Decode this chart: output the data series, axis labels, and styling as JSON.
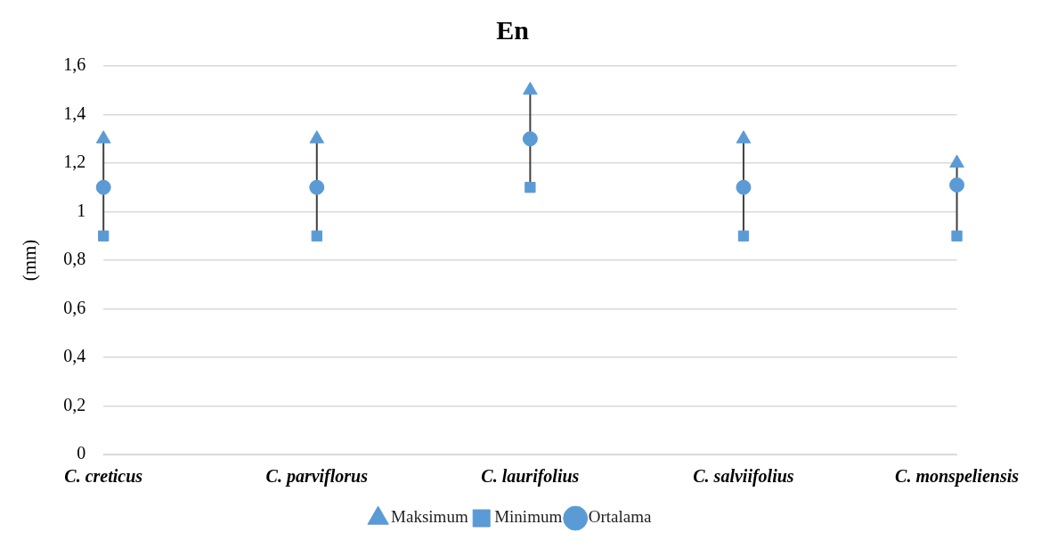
{
  "chart_data": {
    "type": "scatter",
    "title": "En",
    "ylabel": "(mm)",
    "categories": [
      "C. creticus",
      "C. parviflorus",
      "C. laurifolius",
      "C. salviifolius",
      "C. monspeliensis"
    ],
    "series": [
      {
        "name": "Maksimum",
        "color": "#5b9bd5",
        "marker": "triangle",
        "values": [
          1.3,
          1.3,
          1.5,
          1.3,
          1.2
        ]
      },
      {
        "name": "Minimum",
        "color": "#5b9bd5",
        "marker": "square",
        "values": [
          0.9,
          0.9,
          1.1,
          0.9,
          0.9
        ]
      },
      {
        "name": "Ortalama",
        "color": "#5b9bd5",
        "marker": "circle",
        "values": [
          1.1,
          1.1,
          1.3,
          1.1,
          1.11
        ]
      }
    ],
    "ylim": [
      0,
      1.6
    ],
    "yticks": [
      0,
      {
        "value": 0.2,
        "label": "0,2"
      },
      {
        "value": 0.4,
        "label": "0,4"
      },
      {
        "value": 0.6,
        "label": "0,6"
      },
      {
        "value": 0.8,
        "label": "0,8"
      },
      1,
      {
        "value": 1.2,
        "label": "1,2"
      },
      {
        "value": 1.4,
        "label": "1,4"
      },
      {
        "value": 1.6,
        "label": "1,6"
      }
    ],
    "grid": "y",
    "legend": "bottom"
  }
}
